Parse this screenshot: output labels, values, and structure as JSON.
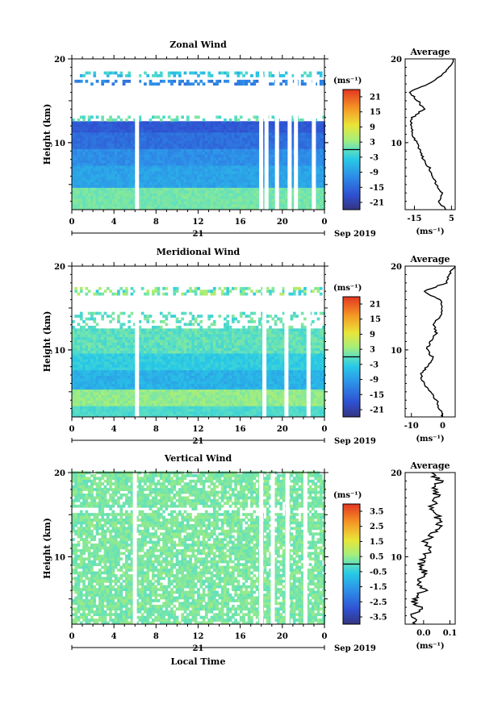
{
  "chart_data": [
    {
      "type": "heatmap",
      "title": "Zonal Wind",
      "ylabel": "Height (km)",
      "x_ticks": [
        "0",
        "4",
        "8",
        "12",
        "16",
        "20",
        "0"
      ],
      "y_ticks": [
        "20",
        "10"
      ],
      "date_day": "21",
      "date_month": "Sep 2019",
      "xlim": [
        0,
        24
      ],
      "ylim": [
        2,
        20
      ],
      "colorbar": {
        "unit": "(ms⁻¹)",
        "ticks": [
          "21",
          "15",
          "9",
          "3",
          "-3",
          "-9",
          "-15",
          "-21"
        ],
        "range": [
          -24,
          24
        ]
      },
      "gaps_hours": [
        6,
        17.8,
        18.3,
        19.3,
        20.5,
        21.1,
        22.8
      ],
      "profile": {
        "title": "Average",
        "xlabel": "(ms⁻¹)",
        "x_ticks": [
          "-15",
          "5"
        ],
        "x_tick_values": [
          -15,
          5
        ],
        "xlim": [
          -20,
          7
        ],
        "y_ticks": [
          "20",
          "10"
        ],
        "heights": [
          2,
          3,
          4,
          5,
          6,
          7,
          8,
          9,
          10,
          11,
          12,
          13,
          14,
          15,
          16,
          17,
          18,
          19,
          20
        ],
        "values": [
          2,
          -2,
          0,
          -3,
          -5,
          -7,
          -10,
          -12,
          -14,
          -16,
          -17,
          -16,
          -10,
          -13,
          -18,
          -8,
          0,
          4,
          6
        ]
      }
    },
    {
      "type": "heatmap",
      "title": "Meridional Wind",
      "ylabel": "Height (km)",
      "x_ticks": [
        "0",
        "4",
        "8",
        "12",
        "16",
        "20",
        "0"
      ],
      "y_ticks": [
        "20",
        "10"
      ],
      "date_day": "21",
      "date_month": "Sep 2019",
      "xlim": [
        0,
        24
      ],
      "ylim": [
        2,
        20
      ],
      "colorbar": {
        "unit": "(ms⁻¹)",
        "ticks": [
          "21",
          "15",
          "9",
          "3",
          "-3",
          "-9",
          "-15",
          "-21"
        ],
        "range": [
          -24,
          24
        ]
      },
      "gaps_hours": [
        6,
        18.1,
        20.2,
        22.3
      ],
      "profile": {
        "title": "Average",
        "xlabel": "(ms⁻¹)",
        "x_ticks": [
          "-10",
          "0"
        ],
        "x_tick_values": [
          -10,
          0
        ],
        "xlim": [
          -12,
          4
        ],
        "y_ticks": [
          "20",
          "10"
        ],
        "heights": [
          2,
          3,
          4,
          5,
          6,
          7,
          8,
          9,
          10,
          11,
          12,
          13,
          14,
          15,
          16,
          17,
          18,
          19,
          20
        ],
        "values": [
          0,
          -1,
          -2,
          -4,
          -6,
          -7,
          -5,
          -3,
          -5,
          -4,
          -2,
          -3,
          -1,
          0,
          -1,
          -6,
          1,
          2,
          4
        ]
      }
    },
    {
      "type": "heatmap",
      "title": "Vertical Wind",
      "ylabel": "Height (km)",
      "x_ticks": [
        "0",
        "4",
        "8",
        "12",
        "16",
        "20",
        "0"
      ],
      "y_ticks": [
        "20",
        "10"
      ],
      "date_day": "21",
      "date_month": "Sep 2019",
      "xlabel": "Local Time",
      "xlim": [
        0,
        24
      ],
      "ylim": [
        2,
        20
      ],
      "colorbar": {
        "unit": "(ms⁻¹)",
        "ticks": [
          "3.5",
          "2.5",
          "1.5",
          "0.5",
          "-0.5",
          "-1.5",
          "-2.5",
          "-3.5"
        ],
        "range": [
          -4,
          4
        ]
      },
      "gaps_hours": [
        5.8,
        17.8,
        18.9,
        20.3,
        22.0
      ],
      "profile": {
        "title": "Average",
        "xlabel": "(ms⁻¹)",
        "x_ticks": [
          "0.0",
          "0.1"
        ],
        "x_tick_values": [
          0.0,
          0.1
        ],
        "xlim": [
          -0.07,
          0.12
        ],
        "y_ticks": [
          "20",
          "10"
        ],
        "heights": [
          2,
          3,
          4,
          5,
          6,
          7,
          8,
          9,
          10,
          11,
          12,
          13,
          14,
          15,
          16,
          17,
          18,
          19,
          20
        ],
        "values": [
          -0.03,
          -0.05,
          -0.01,
          -0.04,
          0.0,
          -0.02,
          0.01,
          -0.01,
          0.0,
          0.02,
          0.01,
          0.04,
          0.06,
          0.05,
          0.03,
          0.05,
          0.04,
          0.06,
          0.03
        ]
      }
    }
  ]
}
